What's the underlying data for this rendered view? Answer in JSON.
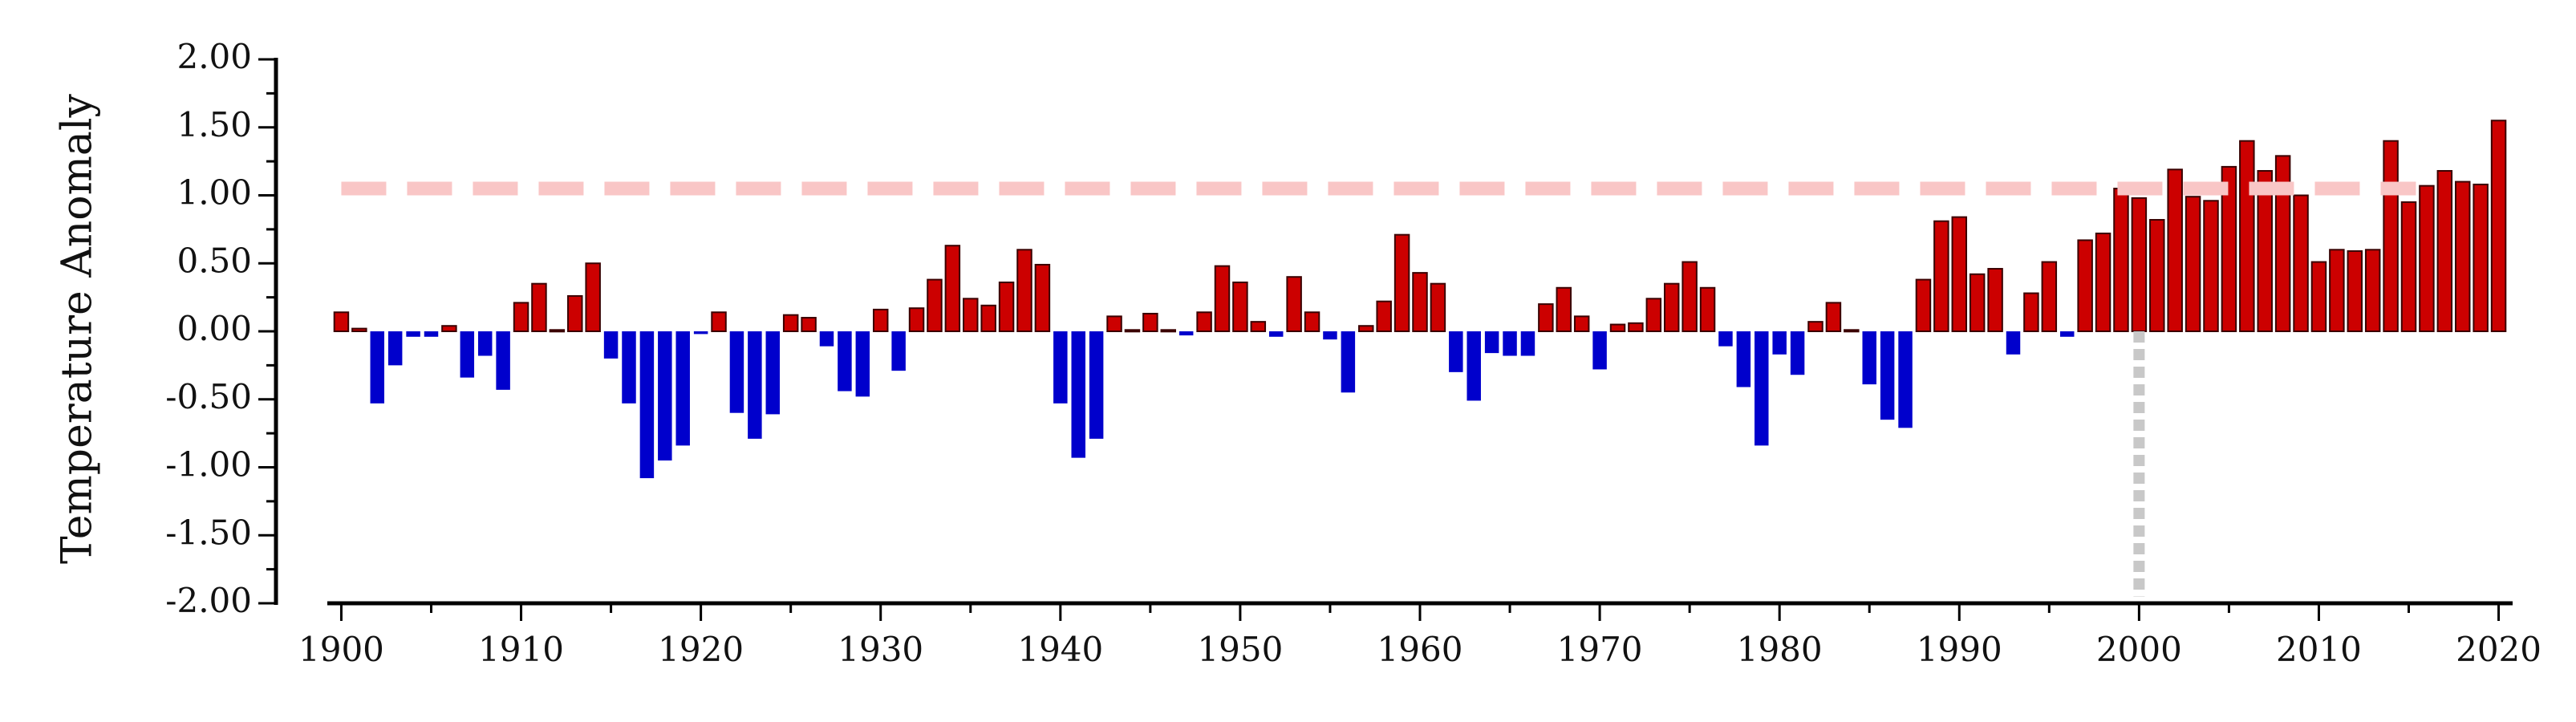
{
  "chart_data": {
    "type": "bar",
    "ylabel": "Temperature Anomaly",
    "xlabel": "",
    "title": "",
    "xlim": [
      1899.4,
      2020.6
    ],
    "ylim": [
      -2.0,
      2.0
    ],
    "x_ticks": [
      1900,
      1910,
      1920,
      1930,
      1940,
      1950,
      1960,
      1970,
      1980,
      1990,
      2000,
      2010,
      2020
    ],
    "x_tick_labels": [
      "1900",
      "1910",
      "1920",
      "1930",
      "1940",
      "1950",
      "1960",
      "1970",
      "1980",
      "1990",
      "2000",
      "2010",
      "2020"
    ],
    "y_ticks": [
      2.0,
      1.5,
      1.0,
      0.5,
      0.0,
      -0.5,
      -1.0,
      -1.5,
      -2.0
    ],
    "y_tick_labels": [
      "2.00",
      "1.50",
      "1.00",
      "0.50",
      "0.00",
      "-0.50",
      "-1.00",
      "-1.50",
      "-2.00"
    ],
    "reference_line_y": 1.05,
    "reference_line_x": 2000,
    "positive_color": "#cc0000",
    "negative_color": "#0000cc",
    "reference_h_color": "#f9c6c6",
    "reference_v_color": "#c8c8c8",
    "years": [
      1900,
      1901,
      1902,
      1903,
      1904,
      1905,
      1906,
      1907,
      1908,
      1909,
      1910,
      1911,
      1912,
      1913,
      1914,
      1915,
      1916,
      1917,
      1918,
      1919,
      1920,
      1921,
      1922,
      1923,
      1924,
      1925,
      1926,
      1927,
      1928,
      1929,
      1930,
      1931,
      1932,
      1933,
      1934,
      1935,
      1936,
      1937,
      1938,
      1939,
      1940,
      1941,
      1942,
      1943,
      1944,
      1945,
      1946,
      1947,
      1948,
      1949,
      1950,
      1951,
      1952,
      1953,
      1954,
      1955,
      1956,
      1957,
      1958,
      1959,
      1960,
      1961,
      1962,
      1963,
      1964,
      1965,
      1966,
      1967,
      1968,
      1969,
      1970,
      1971,
      1972,
      1973,
      1974,
      1975,
      1976,
      1977,
      1978,
      1979,
      1980,
      1981,
      1982,
      1983,
      1984,
      1985,
      1986,
      1987,
      1988,
      1989,
      1990,
      1991,
      1992,
      1993,
      1994,
      1995,
      1996,
      1997,
      1998,
      1999,
      2000,
      2001,
      2002,
      2003,
      2004,
      2005,
      2006,
      2007,
      2008,
      2009,
      2010,
      2011,
      2012,
      2013,
      2014,
      2015,
      2016,
      2017,
      2018,
      2019,
      2020
    ],
    "values": [
      0.14,
      0.02,
      -0.53,
      -0.25,
      -0.04,
      -0.04,
      0.04,
      -0.34,
      -0.18,
      -0.43,
      0.21,
      0.35,
      0.01,
      0.26,
      0.5,
      -0.2,
      -0.53,
      -1.08,
      -0.95,
      -0.84,
      -0.02,
      0.14,
      -0.6,
      -0.79,
      -0.61,
      0.12,
      0.1,
      -0.11,
      -0.44,
      -0.48,
      0.16,
      -0.29,
      0.17,
      0.38,
      0.63,
      0.24,
      0.19,
      0.36,
      0.6,
      0.49,
      -0.53,
      -0.93,
      -0.79,
      0.11,
      0.01,
      0.13,
      0.01,
      -0.03,
      0.14,
      0.48,
      0.36,
      0.07,
      -0.04,
      0.4,
      0.14,
      -0.06,
      -0.45,
      0.04,
      0.22,
      0.71,
      0.43,
      0.35,
      -0.3,
      -0.51,
      -0.16,
      -0.18,
      -0.18,
      0.2,
      0.32,
      0.11,
      -0.28,
      0.05,
      0.06,
      0.24,
      0.35,
      0.51,
      0.32,
      -0.11,
      -0.41,
      -0.84,
      -0.17,
      -0.32,
      0.07,
      0.21,
      0.01,
      -0.39,
      -0.65,
      -0.71,
      0.38,
      0.81,
      0.84,
      0.42,
      0.46,
      -0.17,
      0.28,
      0.51,
      -0.04,
      0.67,
      0.72,
      1.05,
      0.98,
      0.82,
      1.19,
      0.99,
      0.96,
      1.21,
      1.4,
      1.18,
      1.29,
      1.0,
      0.51,
      0.6,
      0.59,
      0.6,
      1.4,
      0.95,
      1.07,
      1.18,
      1.1,
      1.08,
      1.55
    ]
  }
}
